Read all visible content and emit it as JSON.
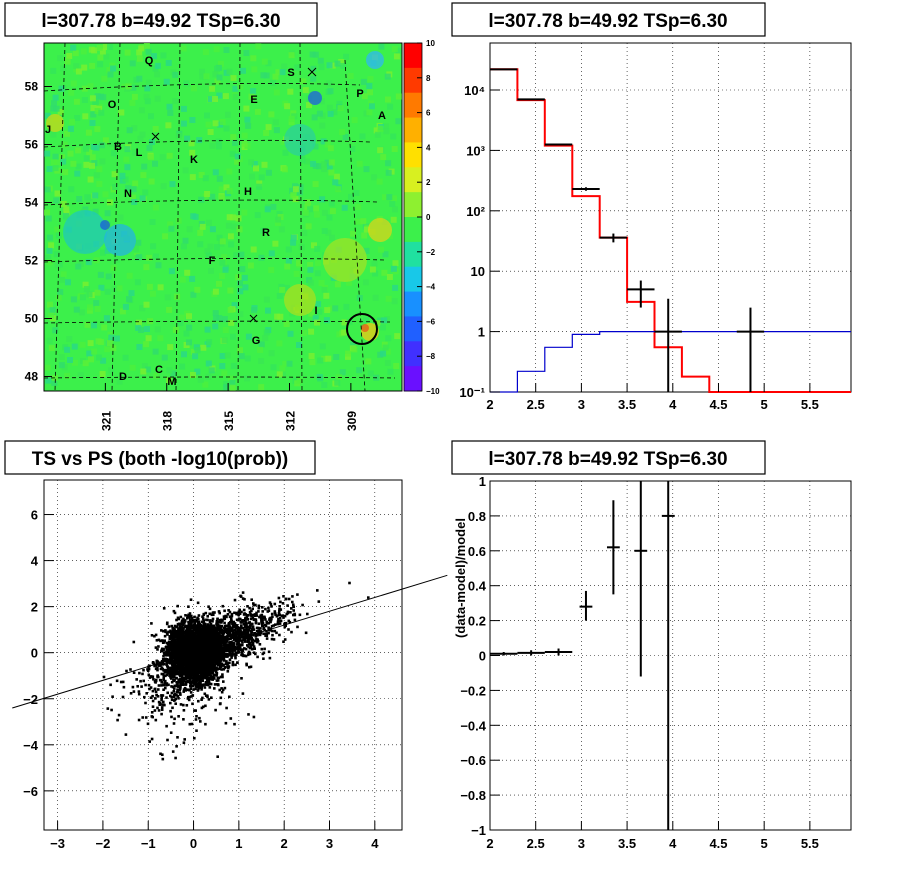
{
  "panels": {
    "map": {
      "title": "l=307.78 b=49.92 TSp=6.30",
      "x_ticks": [
        "321",
        "318",
        "315",
        "312",
        "309"
      ],
      "y_ticks": [
        "48",
        "50",
        "52",
        "54",
        "56",
        "58"
      ],
      "colorbar_ticks": [
        "10",
        "8",
        "6",
        "4",
        "2",
        "0",
        "−2",
        "−4",
        "−6",
        "−8",
        "−10"
      ],
      "region_labels": [
        "Q",
        "S",
        "P",
        "O",
        "E",
        "A",
        "J",
        "B",
        "L",
        "K",
        "N",
        "H",
        "R",
        "F",
        "I",
        "G",
        "D",
        "C",
        "M"
      ]
    },
    "spectrum": {
      "title": "l=307.78 b=49.92 TSp=6.30"
    },
    "scatter": {
      "title": "TS vs PS (both -log10(prob))"
    },
    "residual": {
      "title": "l=307.78 b=49.92 TSp=6.30"
    }
  },
  "chart_data": [
    {
      "type": "heatmap",
      "title": "l=307.78 b=49.92 TSp=6.30",
      "x_ticks": [
        321,
        318,
        315,
        312,
        309
      ],
      "y_ticks": [
        48,
        50,
        52,
        54,
        56,
        58
      ],
      "xlim": [
        324,
        306.5
      ],
      "ylim": [
        47.5,
        59.5
      ],
      "zlim": [
        -10,
        10
      ],
      "colorbar_ticks": [
        10,
        8,
        6,
        4,
        2,
        0,
        -2,
        -4,
        -6,
        -8,
        -10
      ],
      "marked_source": {
        "l": 307.78,
        "b": 49.92
      }
    },
    {
      "type": "line",
      "title": "l=307.78 b=49.92 TSp=6.30",
      "yscale": "log",
      "xlim": [
        2,
        5.95
      ],
      "ylim": [
        0.1,
        60000
      ],
      "x_ticks": [
        "2",
        "2.5",
        "3",
        "3.5",
        "4",
        "4.5",
        "5",
        "5.5"
      ],
      "y_ticks": [
        "10⁻¹",
        "1",
        "10",
        "10²",
        "10³",
        "10⁴"
      ],
      "series": [
        {
          "color": "#ff0000",
          "style": "step",
          "edges": [
            2,
            2.3,
            2.6,
            2.9,
            3.2,
            3.5,
            3.8,
            4.1,
            4.4,
            4.7,
            5.0,
            5.3,
            5.6,
            5.95
          ],
          "values": [
            22000,
            6800,
            1200,
            175,
            36,
            3.1,
            0.55,
            0.18,
            0.1,
            0.1,
            0.1,
            0.1,
            0.1
          ]
        },
        {
          "color": "#0000cc",
          "style": "step",
          "edges": [
            2,
            2.3,
            2.6,
            2.9,
            3.2,
            3.5,
            3.8,
            4.1,
            4.4,
            4.7,
            5.0,
            5.3,
            5.6,
            5.95
          ],
          "values": [
            0.1,
            0.22,
            0.55,
            0.9,
            1.0,
            1.0,
            1.0,
            1.0,
            1.0,
            1.0,
            1.0,
            1.0,
            1.0
          ]
        },
        {
          "color": "#000000",
          "style": "errorbar",
          "points": [
            {
              "x": 2.15,
              "xerr": 0.15,
              "y": 22000,
              "ylo": 21500,
              "yhi": 22500
            },
            {
              "x": 2.45,
              "xerr": 0.15,
              "y": 7000,
              "ylo": 6900,
              "yhi": 7100
            },
            {
              "x": 2.75,
              "xerr": 0.15,
              "y": 1250,
              "ylo": 1220,
              "yhi": 1280
            },
            {
              "x": 3.05,
              "xerr": 0.15,
              "y": 230,
              "ylo": 215,
              "yhi": 245
            },
            {
              "x": 3.35,
              "xerr": 0.15,
              "y": 36,
              "ylo": 30,
              "yhi": 42
            },
            {
              "x": 3.65,
              "xerr": 0.15,
              "y": 5,
              "ylo": 2.5,
              "yhi": 7
            },
            {
              "x": 3.95,
              "xerr": 0.15,
              "y": 1,
              "ylo": 0.1,
              "yhi": 3.5
            },
            {
              "x": 4.85,
              "xerr": 0.15,
              "y": 1,
              "ylo": 0.1,
              "yhi": 2.5
            }
          ]
        }
      ]
    },
    {
      "type": "scatter",
      "title": "TS vs PS (both -log10(prob))",
      "xlim": [
        -3.3,
        4.6
      ],
      "ylim": [
        -7.7,
        7.5
      ],
      "x_ticks": [
        "−3",
        "−2",
        "−1",
        "0",
        "1",
        "2",
        "3",
        "4"
      ],
      "y_ticks": [
        "−6",
        "−4",
        "−2",
        "0",
        "2",
        "4",
        "6"
      ],
      "fit_line": {
        "slope": 0.6,
        "intercept": 0.0
      },
      "cloud": {
        "n_points": 5000,
        "core_sd": 0.55,
        "trend": 0.75
      }
    },
    {
      "type": "line",
      "title": "l=307.78 b=49.92 TSp=6.30",
      "ylabel": "(data-model)/model",
      "xlim": [
        2,
        5.95
      ],
      "ylim": [
        -1,
        1
      ],
      "x_ticks": [
        "2",
        "2.5",
        "3",
        "3.5",
        "4",
        "4.5",
        "5",
        "5.5"
      ],
      "y_ticks": [
        "−1",
        "−0.8",
        "−0.6",
        "−0.4",
        "−0.2",
        "0",
        "0.2",
        "0.4",
        "0.6",
        "0.8",
        "1"
      ],
      "series": [
        {
          "color": "#000000",
          "style": "errorbar",
          "points": [
            {
              "x": 2.15,
              "xerr": 0.15,
              "y": 0.01,
              "ylo": 0.0,
              "yhi": 0.02
            },
            {
              "x": 2.45,
              "xerr": 0.15,
              "y": 0.015,
              "ylo": 0.0,
              "yhi": 0.03
            },
            {
              "x": 2.75,
              "xerr": 0.15,
              "y": 0.02,
              "ylo": 0.0,
              "yhi": 0.04
            },
            {
              "x": 3.05,
              "xerr": 0.07,
              "y": 0.28,
              "ylo": 0.2,
              "yhi": 0.37
            },
            {
              "x": 3.35,
              "xerr": 0.07,
              "y": 0.62,
              "ylo": 0.35,
              "yhi": 0.89
            },
            {
              "x": 3.65,
              "xerr": 0.07,
              "y": 0.6,
              "ylo": -0.12,
              "yhi": 1.0
            },
            {
              "x": 3.95,
              "xerr": 0.07,
              "y": 0.8,
              "ylo": -1.0,
              "yhi": 1.0
            }
          ]
        }
      ]
    }
  ]
}
